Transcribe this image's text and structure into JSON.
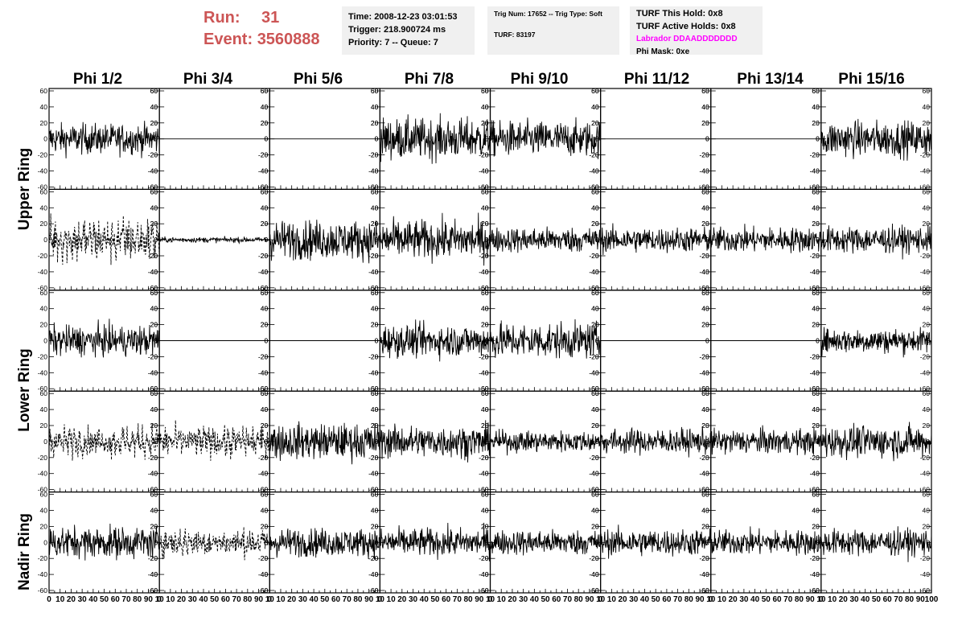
{
  "header": {
    "run_label": "Run:",
    "run_value": "31",
    "event_label": "Event:",
    "event_value": "3560888",
    "time": "Time: 2008-12-23 03:01:53",
    "trigger": "Trigger: 218.900724 ms",
    "priority": "Priority: 7 -- Queue: 7",
    "trig_num": "Trig Num: 17652 -- Trig Type: Soft",
    "turf": "TURF: 83197",
    "turf_this_hold": "TURF This Hold: 0x8",
    "turf_active_holds": "TURF Active Holds: 0x8",
    "labrador": "Labrador DDAADDDDDDD",
    "phi_mask": "Phi Mask: 0xe"
  },
  "colors": {
    "run_event": "#cc5555",
    "labrador": "#ff00ff",
    "info_box_bg": "#f0f0f0"
  },
  "columns": [
    "Phi 1/2",
    "Phi 3/4",
    "Phi 5/6",
    "Phi 7/8",
    "Phi 9/10",
    "Phi 11/12",
    "Phi 13/14",
    "Phi 15/16"
  ],
  "ring_labels": [
    "Upper Ring",
    "Lower Ring",
    "Nadir Ring"
  ],
  "chart_data": {
    "type": "line",
    "title": "",
    "rows": 5,
    "cols": 8,
    "xlim": [
      0,
      100
    ],
    "ylim": [
      -63,
      63
    ],
    "x_ticks": [
      0,
      10,
      20,
      30,
      40,
      50,
      60,
      70,
      80,
      90,
      100
    ],
    "x_tick_labels_last_col": [
      "0",
      "10",
      "20",
      "30",
      "40",
      "50",
      "60",
      "70",
      "80",
      "90",
      "100"
    ],
    "x_tick_labels_other_cols": [
      "0",
      "10",
      "20",
      "30",
      "40",
      "50",
      "60",
      "70",
      "80",
      "90",
      "10"
    ],
    "y_ticks": [
      -60,
      -40,
      -20,
      0,
      20,
      40,
      60
    ],
    "y_tick_labels": [
      "-60",
      "-40",
      "-20",
      "0",
      "20",
      "40",
      "60"
    ],
    "grid": false,
    "panels": [
      [
        {
          "style": "solid",
          "amp": 17
        },
        {
          "style": "flat",
          "amp": 0
        },
        {
          "style": "flat",
          "amp": 0
        },
        {
          "style": "solid",
          "amp": 23
        },
        {
          "style": "solid",
          "amp": 20
        },
        {
          "style": "flat",
          "amp": 0
        },
        {
          "style": "flat",
          "amp": 0
        },
        {
          "style": "solid",
          "amp": 20
        }
      ],
      [
        {
          "style": "dashed",
          "amp": 22
        },
        {
          "style": "small",
          "amp": 3
        },
        {
          "style": "solid",
          "amp": 22
        },
        {
          "style": "solid",
          "amp": 22
        },
        {
          "style": "solid",
          "amp": 14
        },
        {
          "style": "solid",
          "amp": 14
        },
        {
          "style": "solid",
          "amp": 14
        },
        {
          "style": "solid",
          "amp": 15
        }
      ],
      [
        {
          "style": "solid",
          "amp": 17
        },
        {
          "style": "flat",
          "amp": 0
        },
        {
          "style": "flat",
          "amp": 0
        },
        {
          "style": "solid",
          "amp": 18
        },
        {
          "style": "solid",
          "amp": 20
        },
        {
          "style": "flat",
          "amp": 0
        },
        {
          "style": "flat",
          "amp": 0
        },
        {
          "style": "solid",
          "amp": 14
        }
      ],
      [
        {
          "style": "dashed",
          "amp": 15
        },
        {
          "style": "dashed",
          "amp": 15
        },
        {
          "style": "solid",
          "amp": 20
        },
        {
          "style": "solid",
          "amp": 18
        },
        {
          "style": "solid",
          "amp": 12
        },
        {
          "style": "solid",
          "amp": 14
        },
        {
          "style": "solid",
          "amp": 14
        },
        {
          "style": "solid",
          "amp": 18
        }
      ],
      [
        {
          "style": "solid",
          "amp": 18
        },
        {
          "style": "dashed",
          "amp": 14
        },
        {
          "style": "solid",
          "amp": 16
        },
        {
          "style": "solid",
          "amp": 16
        },
        {
          "style": "solid",
          "amp": 14
        },
        {
          "style": "solid",
          "amp": 15
        },
        {
          "style": "solid",
          "amp": 14
        },
        {
          "style": "solid",
          "amp": 15
        }
      ]
    ]
  }
}
